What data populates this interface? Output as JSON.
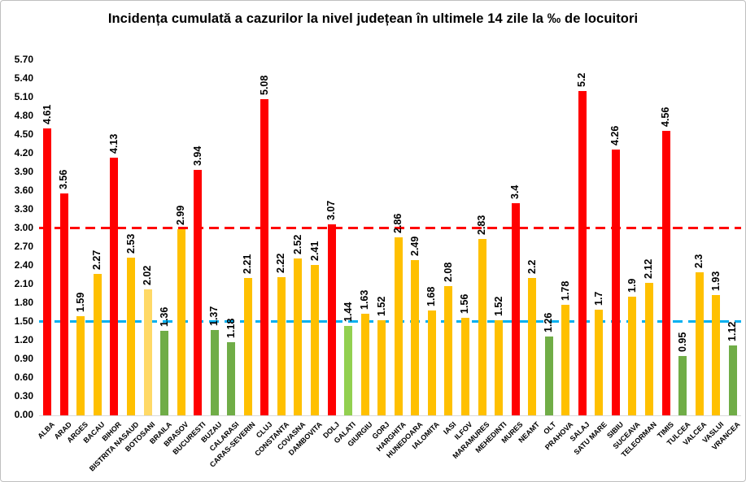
{
  "title": "Incidența cumulată a cazurilor la nivel județean în ultimele 14 zile la ‰ de locuitori",
  "chart_data": {
    "type": "bar",
    "title": "Incidența cumulată a cazurilor la nivel județean în ultimele 14 zile la ‰ de locuitori",
    "xlabel": "",
    "ylabel": "",
    "ylim": [
      0,
      5.7
    ],
    "ytick_step": 0.3,
    "grid": false,
    "legend": "none",
    "y_ticks": [
      "0.00",
      "0.30",
      "0.60",
      "0.90",
      "1.20",
      "1.50",
      "1.80",
      "2.10",
      "2.40",
      "2.70",
      "3.00",
      "3.30",
      "3.60",
      "3.90",
      "4.20",
      "4.50",
      "4.80",
      "5.10",
      "5.40",
      "5.70"
    ],
    "palette": {
      "red": "#FF0000",
      "gold": "#FFC000",
      "light_gold": "#FFD966",
      "green": "#70AD47",
      "light_green": "#92D050"
    },
    "reference_lines": [
      {
        "value": 3.0,
        "color": "#FF0000",
        "style": "dashed"
      },
      {
        "value": 1.5,
        "color": "#00B0F0",
        "style": "dashed"
      }
    ],
    "bars": [
      {
        "category": "ALBA",
        "value": 4.61,
        "label": "4.61",
        "color": "red"
      },
      {
        "category": "ARAD",
        "value": 3.56,
        "label": "3.56",
        "color": "red"
      },
      {
        "category": "ARGES",
        "value": 1.59,
        "label": "1.59",
        "color": "gold"
      },
      {
        "category": "BACAU",
        "value": 2.27,
        "label": "2.27",
        "color": "gold"
      },
      {
        "category": "BIHOR",
        "value": 4.13,
        "label": "4.13",
        "color": "red"
      },
      {
        "category": "BISTRITA NASAUD",
        "value": 2.53,
        "label": "2.53",
        "color": "gold"
      },
      {
        "category": "BOTOSANI",
        "value": 2.02,
        "label": "2.02",
        "color": "light_gold"
      },
      {
        "category": "BRAILA",
        "value": 1.36,
        "label": "1.36",
        "color": "green"
      },
      {
        "category": "BRASOV",
        "value": 2.99,
        "label": "2.99",
        "color": "gold"
      },
      {
        "category": "BUCURESTI",
        "value": 3.94,
        "label": "3.94",
        "color": "red"
      },
      {
        "category": "BUZAU",
        "value": 1.37,
        "label": "1.37",
        "color": "green"
      },
      {
        "category": "CALARASI",
        "value": 1.18,
        "label": "1.18",
        "color": "green"
      },
      {
        "category": "CARAS-SEVERIN",
        "value": 2.21,
        "label": "2.21",
        "color": "gold"
      },
      {
        "category": "CLUJ",
        "value": 5.08,
        "label": "5.08",
        "color": "red"
      },
      {
        "category": "CONSTANTA",
        "value": 2.22,
        "label": "2.22",
        "color": "gold"
      },
      {
        "category": "COVASNA",
        "value": 2.52,
        "label": "2.52",
        "color": "gold"
      },
      {
        "category": "DAMBOVITA",
        "value": 2.41,
        "label": "2.41",
        "color": "gold"
      },
      {
        "category": "DOLJ",
        "value": 3.07,
        "label": "3.07",
        "color": "red"
      },
      {
        "category": "GALATI",
        "value": 1.44,
        "label": "1.44",
        "color": "light_green"
      },
      {
        "category": "GIURGIU",
        "value": 1.63,
        "label": "1.63",
        "color": "gold"
      },
      {
        "category": "GORJ",
        "value": 1.52,
        "label": "1.52",
        "color": "gold"
      },
      {
        "category": "HARGHITA",
        "value": 2.86,
        "label": "2.86",
        "color": "gold"
      },
      {
        "category": "HUNEDOARA",
        "value": 2.49,
        "label": "2.49",
        "color": "gold"
      },
      {
        "category": "IALOMITA",
        "value": 1.68,
        "label": "1.68",
        "color": "gold"
      },
      {
        "category": "IASI",
        "value": 2.08,
        "label": "2.08",
        "color": "gold"
      },
      {
        "category": "ILFOV",
        "value": 1.56,
        "label": "1.56",
        "color": "gold"
      },
      {
        "category": "MARAMURES",
        "value": 2.83,
        "label": "2.83",
        "color": "gold"
      },
      {
        "category": "MEHEDINTI",
        "value": 1.52,
        "label": "1.52",
        "color": "gold"
      },
      {
        "category": "MURES",
        "value": 3.4,
        "label": "3.4",
        "color": "red"
      },
      {
        "category": "NEAMT",
        "value": 2.2,
        "label": "2.2",
        "color": "gold"
      },
      {
        "category": "OLT",
        "value": 1.26,
        "label": "1.26",
        "color": "green"
      },
      {
        "category": "PRAHOVA",
        "value": 1.78,
        "label": "1.78",
        "color": "gold"
      },
      {
        "category": "SALAJ",
        "value": 5.2,
        "label": "5.2",
        "color": "red"
      },
      {
        "category": "SATU MARE",
        "value": 1.7,
        "label": "1.7",
        "color": "gold"
      },
      {
        "category": "SIBIU",
        "value": 4.26,
        "label": "4.26",
        "color": "red"
      },
      {
        "category": "SUCEAVA",
        "value": 1.9,
        "label": "1.9",
        "color": "gold"
      },
      {
        "category": "TELEORMAN",
        "value": 2.12,
        "label": "2.12",
        "color": "gold"
      },
      {
        "category": "TIMIS",
        "value": 4.56,
        "label": "4.56",
        "color": "red"
      },
      {
        "category": "TULCEA",
        "value": 0.95,
        "label": "0.95",
        "color": "green"
      },
      {
        "category": "VALCEA",
        "value": 2.3,
        "label": "2.3",
        "color": "gold"
      },
      {
        "category": "VASLUI",
        "value": 1.93,
        "label": "1.93",
        "color": "gold"
      },
      {
        "category": "VRANCEA",
        "value": 1.12,
        "label": "1.12",
        "color": "green"
      }
    ]
  }
}
